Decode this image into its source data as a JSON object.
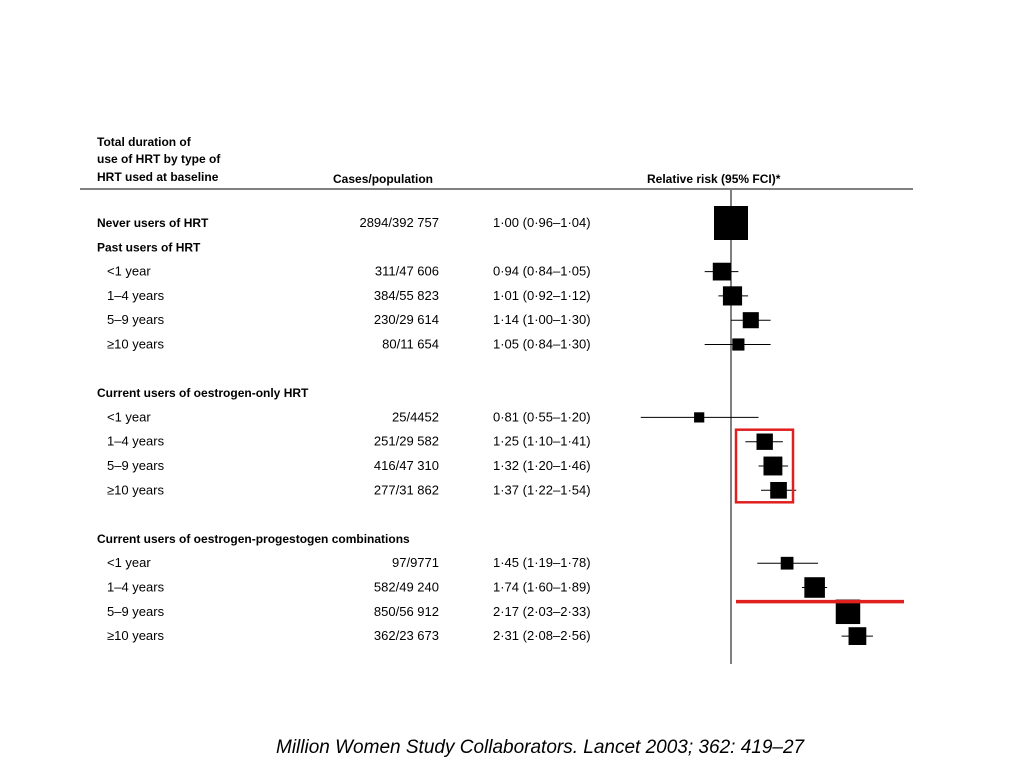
{
  "headers": {
    "category_lines": [
      "Total duration of",
      "use of HRT by type of",
      "HRT used at baseline"
    ],
    "cases": "Cases/population",
    "rr": "Relative risk (95% FCI)*"
  },
  "chart_data": {
    "type": "forest",
    "title": "",
    "xlabel": "Relative risk (95% FCI)*",
    "xscale": "log",
    "reference_value": 1.0,
    "xlim": [
      0.72,
      2.75
    ],
    "rows": [
      {
        "kind": "row",
        "label": "Never users of HRT",
        "bold": true,
        "cases": "2894/392 757",
        "ci_text": "1·00 (0·96–1·04)",
        "rr": 1.0,
        "lo": 0.96,
        "hi": 1.04,
        "weight": 1.0
      },
      {
        "kind": "group",
        "label": "Past users of HRT"
      },
      {
        "kind": "row",
        "label": "<1 year",
        "cases": "311/47 606",
        "ci_text": "0·94 (0·84–1·05)",
        "rr": 0.94,
        "lo": 0.84,
        "hi": 1.05,
        "weight": 0.42
      },
      {
        "kind": "row",
        "label": "1–4 years",
        "cases": "384/55 823",
        "ci_text": "1·01 (0·92–1·12)",
        "rr": 1.01,
        "lo": 0.92,
        "hi": 1.12,
        "weight": 0.47
      },
      {
        "kind": "row",
        "label": "5–9 years",
        "cases": "230/29 614",
        "ci_text": "1·14 (1·00–1·30)",
        "rr": 1.14,
        "lo": 1.0,
        "hi": 1.3,
        "weight": 0.36
      },
      {
        "kind": "row",
        "label": "≥10 years",
        "cases": "80/11 654",
        "ci_text": "1·05 (0·84–1·30)",
        "rr": 1.05,
        "lo": 0.84,
        "hi": 1.3,
        "weight": 0.22
      },
      {
        "kind": "gap"
      },
      {
        "kind": "group",
        "label": "Current users of oestrogen-only HRT"
      },
      {
        "kind": "row",
        "label": "<1 year",
        "cases": "25/4452",
        "ci_text": "0·81 (0·55–1·20)",
        "rr": 0.81,
        "lo": 0.55,
        "hi": 1.2,
        "weight": 0.15
      },
      {
        "kind": "row",
        "label": "1–4 years",
        "cases": "251/29 582",
        "ci_text": "1·25 (1·10–1·41)",
        "rr": 1.25,
        "lo": 1.1,
        "hi": 1.41,
        "weight": 0.37
      },
      {
        "kind": "row",
        "label": "5–9 years",
        "cases": "416/47 310",
        "ci_text": "1·32 (1·20–1·46)",
        "rr": 1.32,
        "lo": 1.2,
        "hi": 1.46,
        "weight": 0.46
      },
      {
        "kind": "row",
        "label": "≥10 years",
        "cases": "277/31 862",
        "ci_text": "1·37 (1·22–1·54)",
        "rr": 1.37,
        "lo": 1.22,
        "hi": 1.54,
        "weight": 0.38
      },
      {
        "kind": "gap"
      },
      {
        "kind": "group",
        "label": "Current users of oestrogen-progestogen combinations"
      },
      {
        "kind": "row",
        "label": "<1 year",
        "cases": "97/9771",
        "ci_text": "1·45 (1·19–1·78)",
        "rr": 1.45,
        "lo": 1.19,
        "hi": 1.78,
        "weight": 0.24
      },
      {
        "kind": "row",
        "label": "1–4 years",
        "cases": "582/49 240",
        "ci_text": "1·74 (1·60–1·89)",
        "rr": 1.74,
        "lo": 1.6,
        "hi": 1.89,
        "weight": 0.52
      },
      {
        "kind": "row",
        "label": "5–9 years",
        "cases": "850/56 912",
        "ci_text": "2·17 (2·03–2·33)",
        "rr": 2.17,
        "lo": 2.03,
        "hi": 2.33,
        "weight": 0.66
      },
      {
        "kind": "row",
        "label": "≥10 years",
        "cases": "362/23 673",
        "ci_text": "2·31 (2·08–2·56)",
        "rr": 2.31,
        "lo": 2.08,
        "hi": 2.56,
        "weight": 0.42
      }
    ],
    "annotations": [
      {
        "type": "box",
        "color": "#e0201f",
        "rows": [
          "1–4 years",
          "≥10 years"
        ],
        "group": "Current users of oestrogen-only HRT"
      },
      {
        "type": "line",
        "color": "#e0201f",
        "between_rows": [
          "1–4 years",
          "5–9 years"
        ],
        "group": "Current users of oestrogen-progestogen combinations"
      }
    ]
  },
  "citation": "Million Women Study Collaborators. Lancet 2003; 362: 419–27",
  "colors": {
    "marker": "#000000",
    "highlight": "#e0201f"
  }
}
